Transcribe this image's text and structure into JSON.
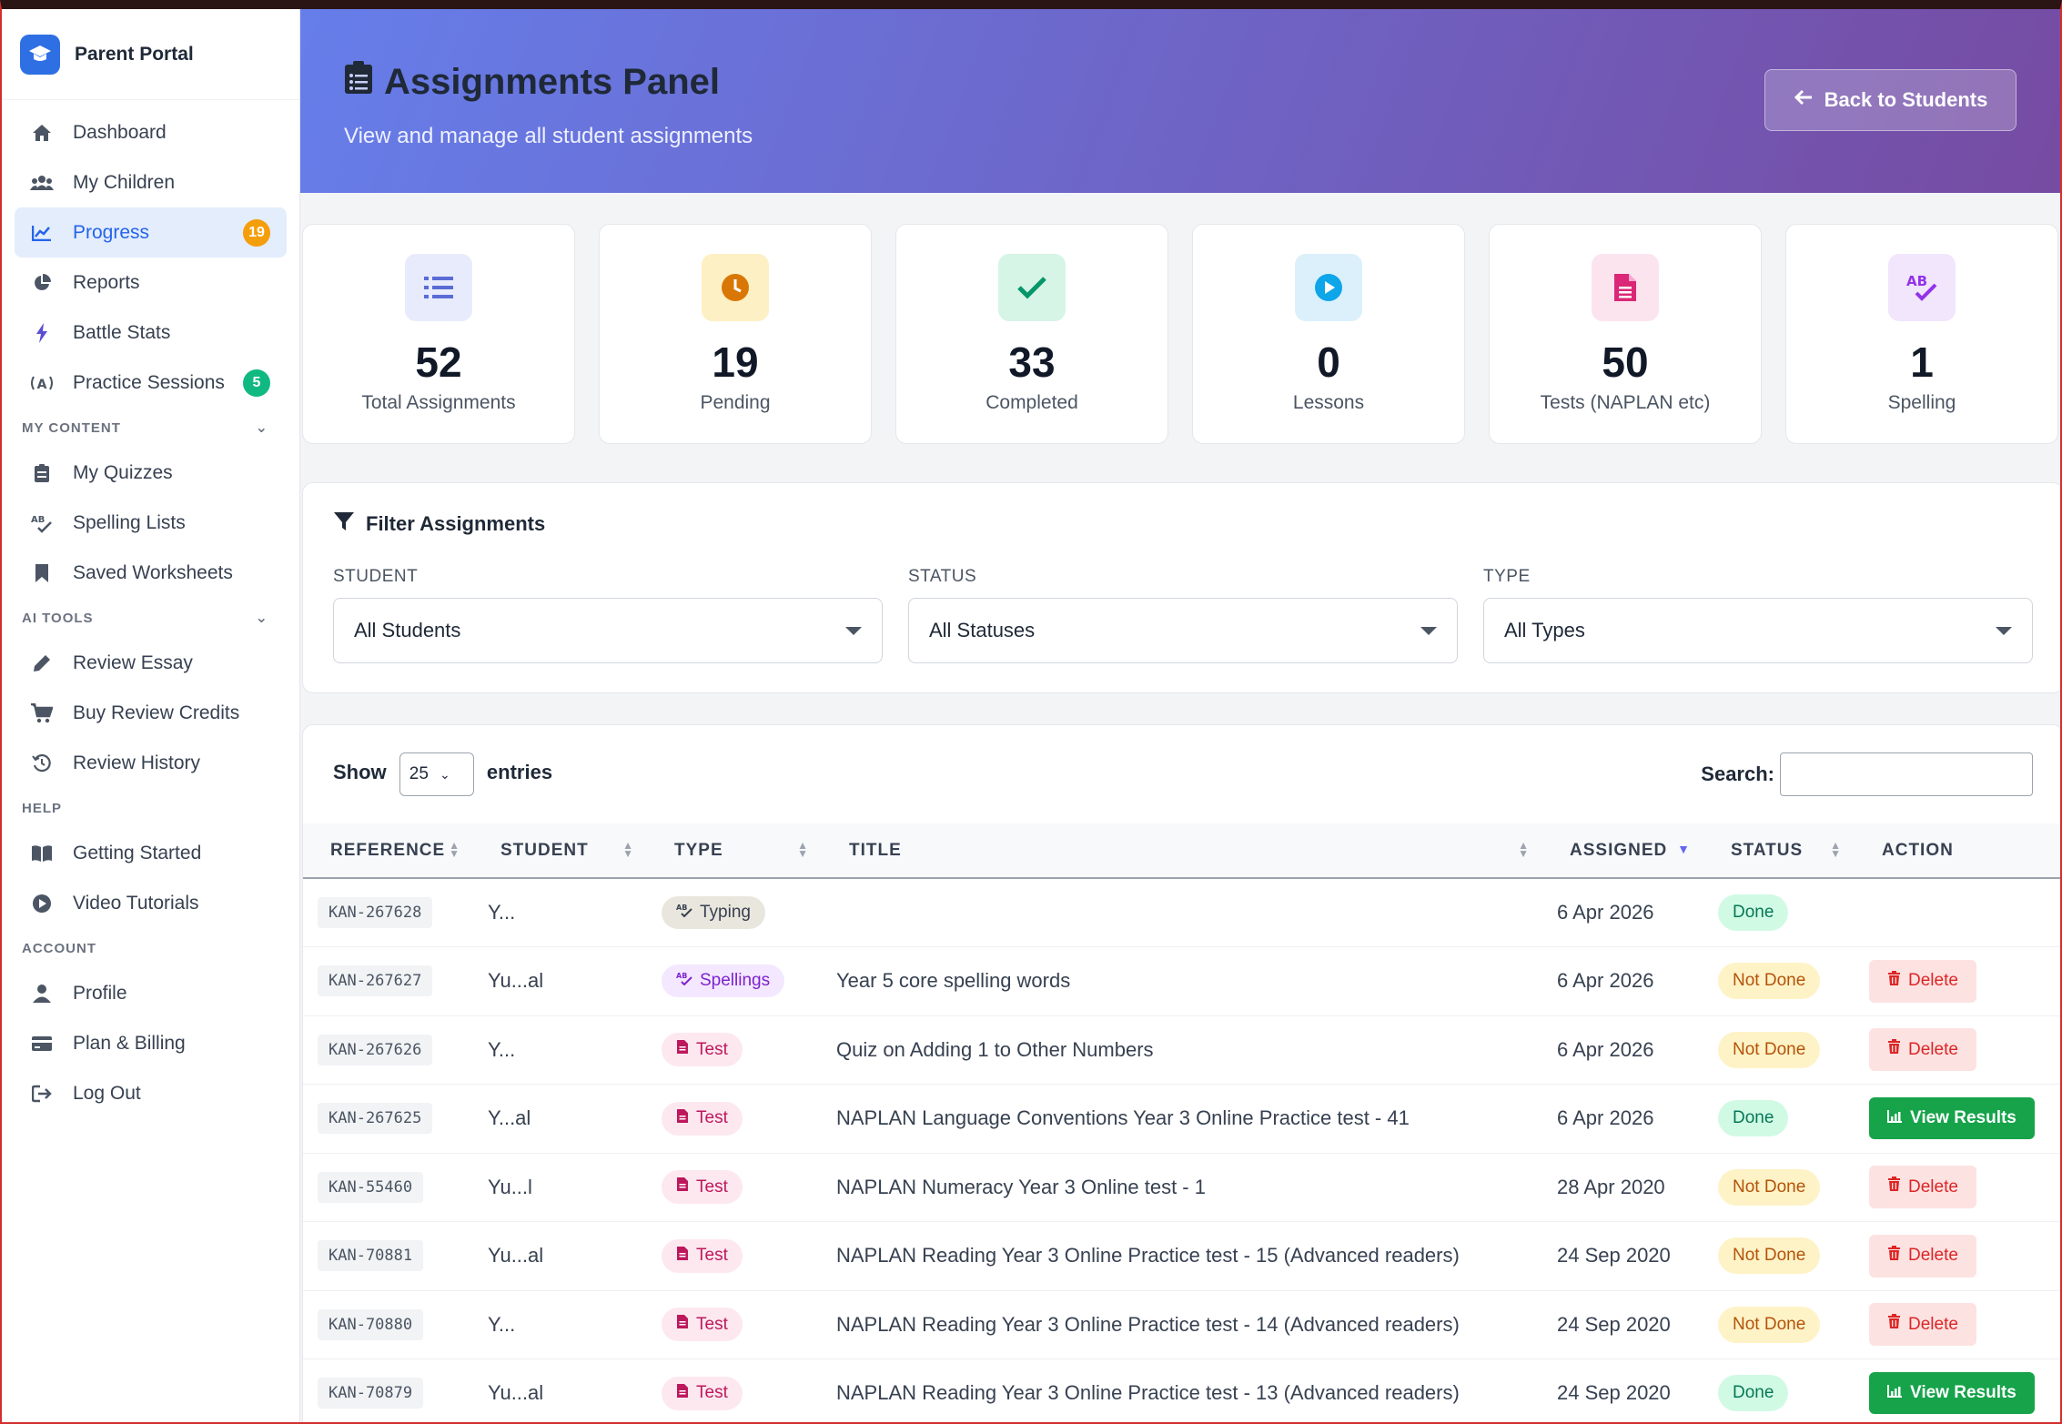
{
  "brand": {
    "name": "Parent Portal",
    "icon": "graduation-cap-icon"
  },
  "nav": {
    "main": [
      {
        "label": "Dashboard",
        "icon": "home-icon"
      },
      {
        "label": "My Children",
        "icon": "users-icon"
      },
      {
        "label": "Progress",
        "icon": "chart-line-icon",
        "badge": "19",
        "active": true
      },
      {
        "label": "Reports",
        "icon": "pie-chart-icon"
      },
      {
        "label": "Battle Stats",
        "icon": "bolt-icon"
      },
      {
        "label": "Practice Sessions",
        "icon": "broadcast-icon",
        "badge": "5"
      }
    ],
    "sections": {
      "my_content": "MY CONTENT",
      "ai_tools": "AI TOOLS",
      "help": "HELP",
      "account": "ACCOUNT"
    },
    "my_content": [
      {
        "label": "My Quizzes",
        "icon": "clipboard-list-icon"
      },
      {
        "label": "Spelling Lists",
        "icon": "spell-check-icon"
      },
      {
        "label": "Saved Worksheets",
        "icon": "bookmark-icon"
      }
    ],
    "ai_tools": [
      {
        "label": "Review Essay",
        "icon": "pencil-icon"
      },
      {
        "label": "Buy Review Credits",
        "icon": "cart-icon"
      },
      {
        "label": "Review History",
        "icon": "history-icon"
      }
    ],
    "help": [
      {
        "label": "Getting Started",
        "icon": "book-open-icon"
      },
      {
        "label": "Video Tutorials",
        "icon": "play-circle-icon"
      }
    ],
    "account": [
      {
        "label": "Profile",
        "icon": "user-icon"
      },
      {
        "label": "Plan & Billing",
        "icon": "credit-card-icon"
      },
      {
        "label": "Log Out",
        "icon": "sign-out-icon"
      }
    ]
  },
  "hero": {
    "title": "Assignments Panel",
    "subtitle": "View and manage all student assignments",
    "back_label": "Back to Students"
  },
  "stats": [
    {
      "value": "52",
      "label": "Total Assignments",
      "icon": "list-icon",
      "bg": "#e8ebfb",
      "fg": "#5b6bd6"
    },
    {
      "value": "19",
      "label": "Pending",
      "icon": "clock-icon",
      "bg": "#fdf0c4",
      "fg": "#d97706"
    },
    {
      "value": "33",
      "label": "Completed",
      "icon": "check-icon",
      "bg": "#d6f5e6",
      "fg": "#059669"
    },
    {
      "value": "0",
      "label": "Lessons",
      "icon": "play-circle-icon",
      "bg": "#dcf0fb",
      "fg": "#0ea5e9"
    },
    {
      "value": "50",
      "label": "Tests (NAPLAN etc)",
      "icon": "file-icon",
      "bg": "#fce4ef",
      "fg": "#db2777"
    },
    {
      "value": "1",
      "label": "Spelling",
      "icon": "spell-check-icon",
      "bg": "#f1e6fc",
      "fg": "#9333ea"
    }
  ],
  "filter": {
    "title": "Filter Assignments",
    "student_label": "STUDENT",
    "student_value": "All Students",
    "status_label": "STATUS",
    "status_value": "All Statuses",
    "type_label": "TYPE",
    "type_value": "All Types"
  },
  "table": {
    "show_label": "Show",
    "entries_value": "25",
    "entries_label": "entries",
    "search_label": "Search:",
    "columns": [
      "REFERENCE",
      "STUDENT",
      "TYPE",
      "TITLE",
      "ASSIGNED",
      "STATUS",
      "ACTION"
    ],
    "rows": [
      {
        "ref": "KAN-267628",
        "student": "Y...",
        "type": "Typing",
        "type_class": "typing",
        "title": "",
        "assigned": "6 Apr 2026",
        "status": "Done",
        "status_class": "done",
        "action": ""
      },
      {
        "ref": "KAN-267627",
        "student": "Yu...al",
        "type": "Spellings",
        "type_class": "spellings",
        "title": "Year 5 core spelling words",
        "assigned": "6 Apr 2026",
        "status": "Not Done",
        "status_class": "notdone",
        "action": "Delete"
      },
      {
        "ref": "KAN-267626",
        "student": "Y...",
        "type": "Test",
        "type_class": "test",
        "title": "Quiz on Adding 1 to Other Numbers",
        "assigned": "6 Apr 2026",
        "status": "Not Done",
        "status_class": "notdone",
        "action": "Delete"
      },
      {
        "ref": "KAN-267625",
        "student": "Y...al",
        "type": "Test",
        "type_class": "test",
        "title": "NAPLAN Language Conventions Year 3 Online Practice test - 41",
        "assigned": "6 Apr 2026",
        "status": "Done",
        "status_class": "done",
        "action": "View Results"
      },
      {
        "ref": "KAN-55460",
        "student": "Yu...l",
        "type": "Test",
        "type_class": "test",
        "title": "NAPLAN Numeracy Year 3 Online test - 1",
        "assigned": "28 Apr 2020",
        "status": "Not Done",
        "status_class": "notdone",
        "action": "Delete"
      },
      {
        "ref": "KAN-70881",
        "student": "Yu...al",
        "type": "Test",
        "type_class": "test",
        "title": "NAPLAN Reading Year 3 Online Practice test - 15 (Advanced readers)",
        "assigned": "24 Sep 2020",
        "status": "Not Done",
        "status_class": "notdone",
        "action": "Delete"
      },
      {
        "ref": "KAN-70880",
        "student": "Y...",
        "type": "Test",
        "type_class": "test",
        "title": "NAPLAN Reading Year 3 Online Practice test - 14 (Advanced readers)",
        "assigned": "24 Sep 2020",
        "status": "Not Done",
        "status_class": "notdone",
        "action": "Delete"
      },
      {
        "ref": "KAN-70879",
        "student": "Yu...al",
        "type": "Test",
        "type_class": "test",
        "title": "NAPLAN Reading Year 3 Online Practice test - 13 (Advanced readers)",
        "assigned": "24 Sep 2020",
        "status": "Done",
        "status_class": "done",
        "action": "View Results"
      }
    ]
  },
  "colors": {
    "accent": "#2563eb",
    "badge_orange": "#f59e0b",
    "badge_green": "#10b981",
    "hero_start": "#667eea",
    "hero_end": "#764ba2"
  }
}
